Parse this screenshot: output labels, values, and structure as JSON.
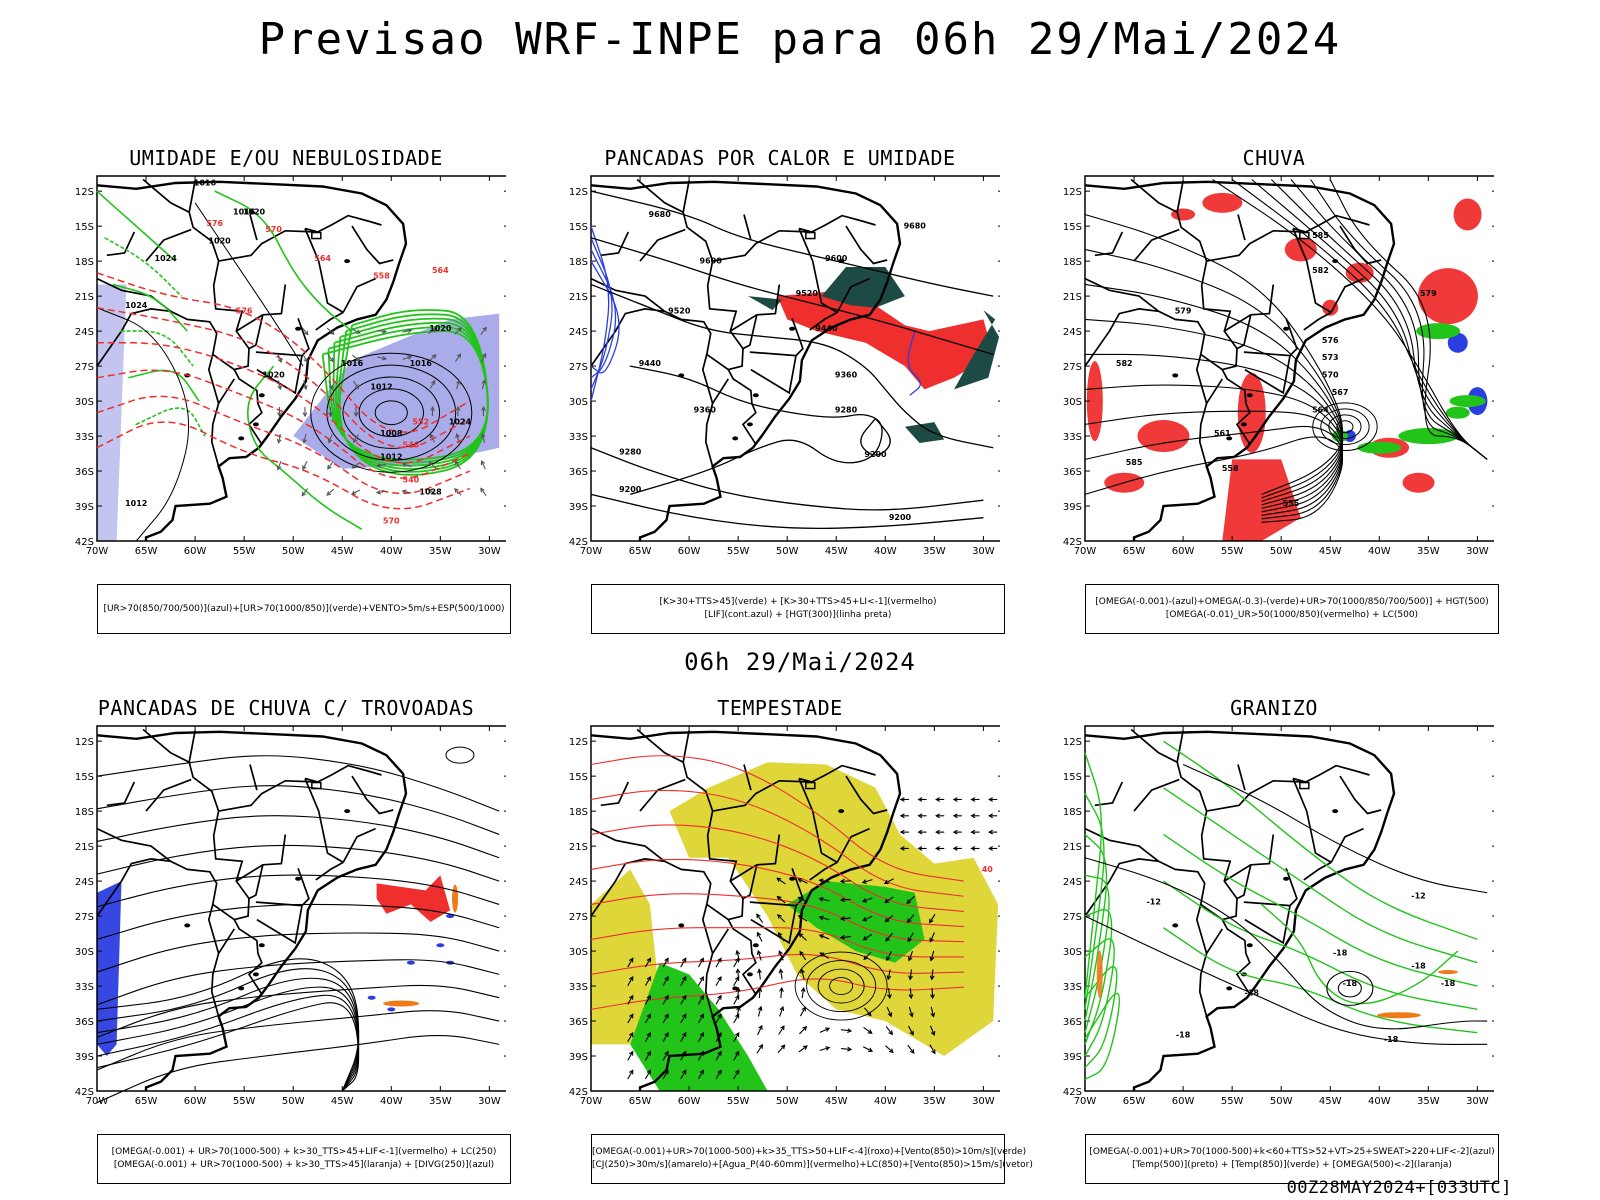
{
  "title": "Previsao WRF-INPE  para 06h 29/Mai/2024",
  "mid_label": "06h 29/Mai/2024",
  "footer": "00Z28MAY2024+[033UTC]",
  "axes": {
    "lat_ticks": [
      "12S",
      "15S",
      "18S",
      "21S",
      "24S",
      "27S",
      "30S",
      "33S",
      "36S",
      "39S",
      "42S"
    ],
    "lon_ticks": [
      "70W",
      "65W",
      "60W",
      "55W",
      "50W",
      "45W",
      "40W",
      "35W",
      "30W"
    ]
  },
  "colors": {
    "green": "#22c41a",
    "red": "#ef2e2e",
    "blue": "#2c3ee0",
    "lightblue": "#9b9ee6",
    "darkteal": "#1d4a45",
    "yellow": "#dfd63a",
    "orange": "#f07a18"
  },
  "panels": [
    {
      "title": "UMIDADE E/OU NEBULOSIDADE",
      "legend": [
        "[UR>70(850/700/500)](azul)+[UR>70(1000/850)](verde)+VENTO>5m/s+ESP(500/1000)"
      ],
      "labels": [
        "1016",
        "1020",
        "1020",
        "1024",
        "1024",
        "1020",
        "1016",
        "1012",
        "1008",
        "1012",
        "1016",
        "1020",
        "1024",
        "1028",
        "1012",
        "1016",
        "576",
        "570",
        "564",
        "558",
        "552",
        "546",
        "540",
        "570",
        "564"
      ]
    },
    {
      "title": "PANCADAS POR CALOR E UMIDADE",
      "legend": [
        "[K>30+TTS>45](verde) + [K>30+TTS>45+LI<-1](vermelho)",
        "[LIF](cont.azul) + [HGT(300)](linha preta)"
      ],
      "labels": [
        "9680",
        "9600",
        "9520",
        "9440",
        "9360",
        "9280",
        "9200",
        "9600",
        "9520",
        "9440",
        "9360",
        "9280",
        "9200",
        "9200",
        "9680"
      ]
    },
    {
      "title": "CHUVA",
      "legend": [
        "[OMEGA(-0.001)-(azul)+OMEGA(-0.3)-(verde)+UR>70(1000/850/700/500)] + HGT(500)",
        "[OMEGA(-0.01)_UR>50(1000/850)(vermelho) + LC(500)"
      ],
      "labels": [
        "585",
        "582",
        "579",
        "576",
        "573",
        "570",
        "567",
        "564",
        "561",
        "558",
        "555",
        "585",
        "582",
        "579"
      ]
    },
    {
      "title": "PANCADAS DE CHUVA C/ TROVOADAS",
      "legend": [
        "[OMEGA(-0.001) + UR>70(1000-500) + k>30_TTS>45+LIF<-1](vermelho) + LC(250)",
        "[OMEGA(-0.001) + UR>70(1000-500) + k>30_TTS>45](laranja) + [DIVG(250)](azul)"
      ],
      "labels": []
    },
    {
      "title": "TEMPESTADE",
      "legend": [
        "[OMEGA(-0.001)+UR>70(1000-500)+k>35_TTS>50+LIF<-4](roxo)+[Vento(850)>10m/s](verde)",
        "[CJ(250)>30m/s](amarelo)+[Agua_P(40-60mm)](vermelho)+LC(850)+[Vento(850)>15m/s](vetor)"
      ],
      "labels": [
        "40"
      ]
    },
    {
      "title": "GRANIZO",
      "legend": [
        "[OMEGA(-0.001)+UR>70(1000-500)+k<60+TTS>52+VT>25+SWEAT>220+LIF<-2](azul)",
        "[Temp(500)](preto) + [Temp(850)](verde) + [OMEGA(500)<-2](laranja)"
      ],
      "labels": [
        "-12",
        "-18",
        "-18",
        "-18",
        "-18",
        "-18",
        "-18",
        "-12",
        "-18"
      ]
    }
  ]
}
